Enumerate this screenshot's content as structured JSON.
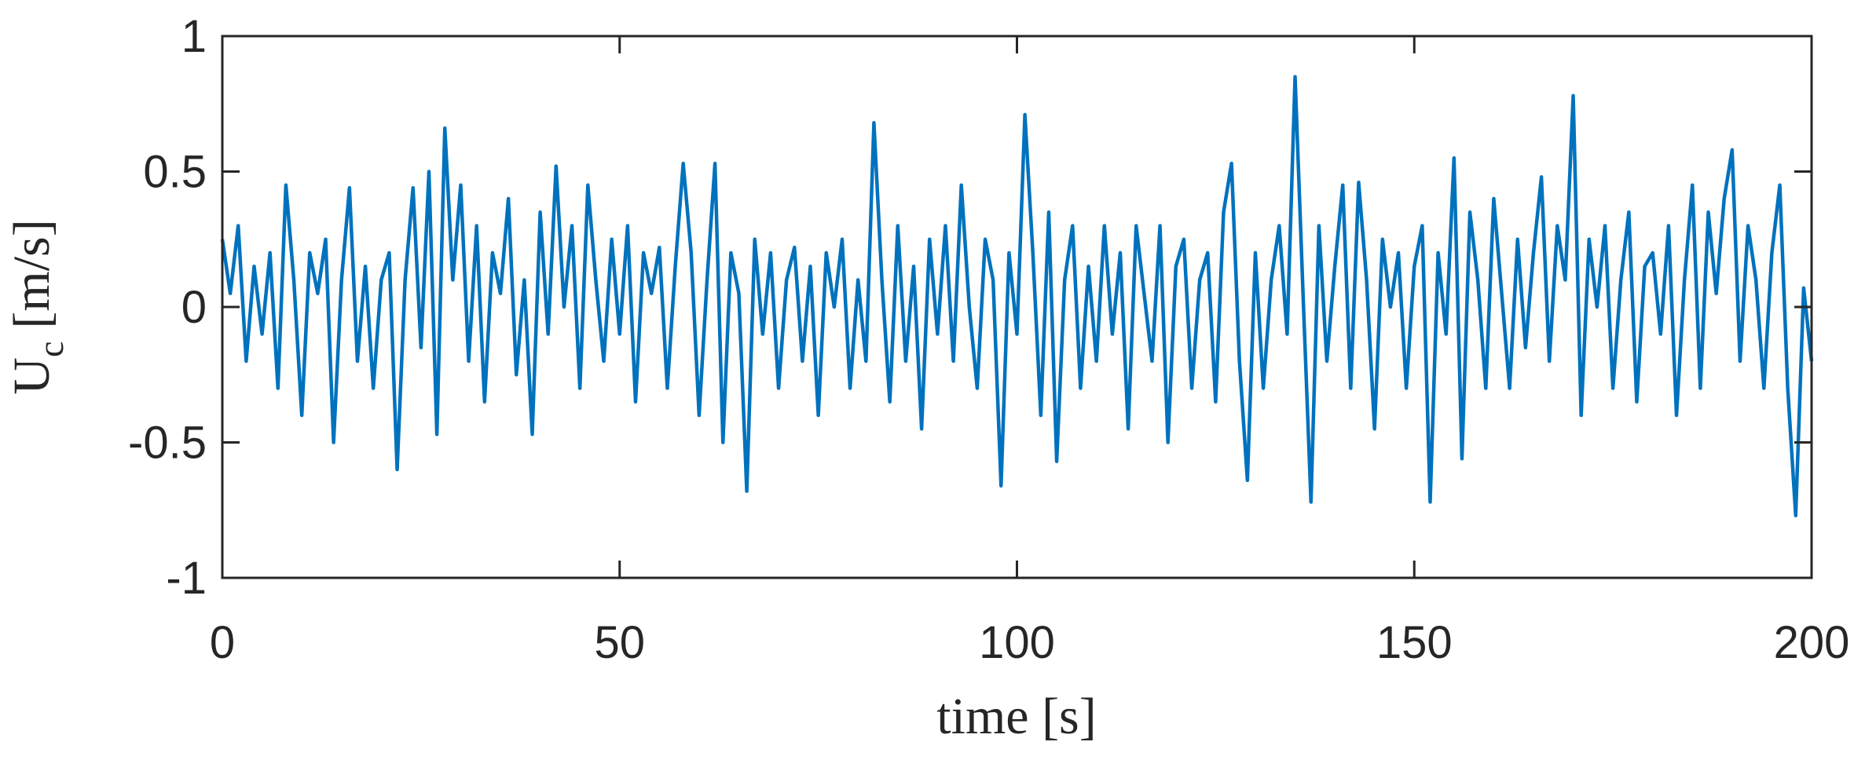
{
  "chart_data": {
    "type": "line",
    "xlabel": "time [s]",
    "ylabel": {
      "main": "U",
      "sub": "c",
      "unit": "[m/s]"
    },
    "xlim": [
      0,
      200
    ],
    "xticks": [
      0,
      50,
      100,
      150,
      200
    ],
    "ylim": [
      -1,
      1
    ],
    "yticks": [
      -1,
      -0.5,
      0,
      0.5,
      1
    ],
    "grid": false,
    "x": [
      0,
      1,
      2,
      3,
      4,
      5,
      6,
      7,
      8,
      9,
      10,
      11,
      12,
      13,
      14,
      15,
      16,
      17,
      18,
      19,
      20,
      21,
      22,
      23,
      24,
      25,
      26,
      27,
      28,
      29,
      30,
      31,
      32,
      33,
      34,
      35,
      36,
      37,
      38,
      39,
      40,
      41,
      42,
      43,
      44,
      45,
      46,
      47,
      48,
      49,
      50,
      51,
      52,
      53,
      54,
      55,
      56,
      57,
      58,
      59,
      60,
      61,
      62,
      63,
      64,
      65,
      66,
      67,
      68,
      69,
      70,
      71,
      72,
      73,
      74,
      75,
      76,
      77,
      78,
      79,
      80,
      81,
      82,
      83,
      84,
      85,
      86,
      87,
      88,
      89,
      90,
      91,
      92,
      93,
      94,
      95,
      96,
      97,
      98,
      99,
      100,
      101,
      102,
      103,
      104,
      105,
      106,
      107,
      108,
      109,
      110,
      111,
      112,
      113,
      114,
      115,
      116,
      117,
      118,
      119,
      120,
      121,
      122,
      123,
      124,
      125,
      126,
      127,
      128,
      129,
      130,
      131,
      132,
      133,
      134,
      135,
      136,
      137,
      138,
      139,
      140,
      141,
      142,
      143,
      144,
      145,
      146,
      147,
      148,
      149,
      150,
      151,
      152,
      153,
      154,
      155,
      156,
      157,
      158,
      159,
      160,
      161,
      162,
      163,
      164,
      165,
      166,
      167,
      168,
      169,
      170,
      171,
      172,
      173,
      174,
      175,
      176,
      177,
      178,
      179,
      180,
      181,
      182,
      183,
      184,
      185,
      186,
      187,
      188,
      189,
      190,
      191,
      192,
      193,
      194,
      195,
      196,
      197,
      198,
      199,
      200
    ],
    "series": [
      {
        "color": "#0072bd",
        "values": [
          0.25,
          0.05,
          0.3,
          -0.2,
          0.15,
          -0.1,
          0.2,
          -0.3,
          0.45,
          0.1,
          -0.4,
          0.2,
          0.05,
          0.25,
          -0.5,
          0.1,
          0.44,
          -0.2,
          0.15,
          -0.3,
          0.1,
          0.2,
          -0.6,
          0.1,
          0.44,
          -0.15,
          0.5,
          -0.47,
          0.66,
          0.1,
          0.45,
          -0.2,
          0.3,
          -0.35,
          0.2,
          0.05,
          0.4,
          -0.25,
          0.1,
          -0.47,
          0.35,
          -0.1,
          0.52,
          0.0,
          0.3,
          -0.3,
          0.45,
          0.1,
          -0.2,
          0.25,
          -0.1,
          0.3,
          -0.35,
          0.2,
          0.05,
          0.22,
          -0.3,
          0.15,
          0.53,
          0.2,
          -0.4,
          0.1,
          0.53,
          -0.5,
          0.2,
          0.05,
          -0.68,
          0.25,
          -0.1,
          0.2,
          -0.3,
          0.1,
          0.22,
          -0.2,
          0.15,
          -0.4,
          0.2,
          0.0,
          0.25,
          -0.3,
          0.1,
          -0.2,
          0.68,
          0.1,
          -0.35,
          0.3,
          -0.2,
          0.15,
          -0.45,
          0.25,
          -0.1,
          0.3,
          -0.2,
          0.45,
          0.0,
          -0.3,
          0.25,
          0.1,
          -0.66,
          0.2,
          -0.1,
          0.71,
          0.2,
          -0.4,
          0.35,
          -0.57,
          0.1,
          0.3,
          -0.3,
          0.15,
          -0.2,
          0.3,
          -0.1,
          0.2,
          -0.45,
          0.3,
          0.05,
          -0.2,
          0.3,
          -0.5,
          0.15,
          0.25,
          -0.3,
          0.1,
          0.2,
          -0.35,
          0.35,
          0.53,
          -0.2,
          -0.64,
          0.2,
          -0.3,
          0.1,
          0.3,
          -0.1,
          0.85,
          0.05,
          -0.72,
          0.3,
          -0.2,
          0.15,
          0.45,
          -0.3,
          0.46,
          0.1,
          -0.45,
          0.25,
          0.0,
          0.2,
          -0.3,
          0.15,
          0.3,
          -0.72,
          0.2,
          -0.1,
          0.55,
          -0.56,
          0.35,
          0.1,
          -0.3,
          0.4,
          0.05,
          -0.3,
          0.25,
          -0.15,
          0.2,
          0.48,
          -0.2,
          0.3,
          0.1,
          0.78,
          -0.4,
          0.25,
          0.0,
          0.3,
          -0.3,
          0.1,
          0.35,
          -0.35,
          0.15,
          0.2,
          -0.1,
          0.3,
          -0.4,
          0.1,
          0.45,
          -0.3,
          0.35,
          0.05,
          0.4,
          0.58,
          -0.2,
          0.3,
          0.1,
          -0.3,
          0.2,
          0.45,
          -0.3,
          -0.77,
          0.07,
          -0.2
        ]
      }
    ]
  }
}
